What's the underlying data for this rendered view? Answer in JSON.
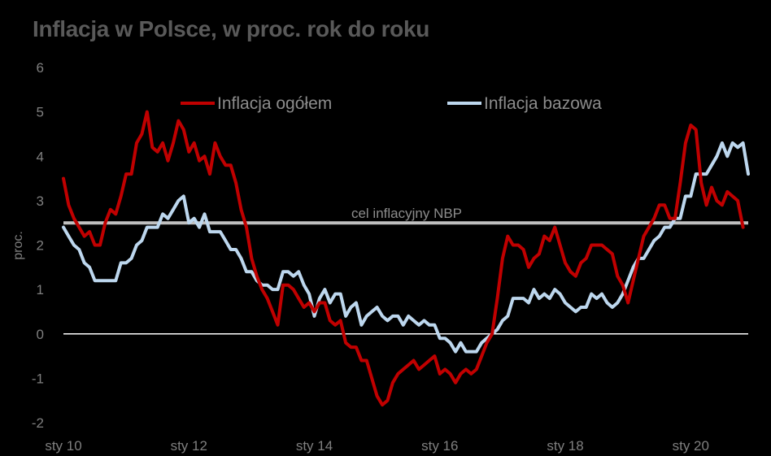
{
  "chart_data": {
    "type": "line",
    "title": "Inflacja w Polsce, w proc. rok do roku",
    "ylabel": "proc.",
    "xlabel": "",
    "ylim": [
      -2,
      6
    ],
    "yticks": [
      -2,
      -1,
      0,
      1,
      2,
      3,
      4,
      5,
      6
    ],
    "xlim": [
      "2010-01",
      "2020-12"
    ],
    "xticks": [
      {
        "label": "sty 10",
        "date": "2010-01"
      },
      {
        "label": "sty 12",
        "date": "2012-01"
      },
      {
        "label": "sty 14",
        "date": "2014-01"
      },
      {
        "label": "sty 16",
        "date": "2016-01"
      },
      {
        "label": "sty 18",
        "date": "2018-01"
      },
      {
        "label": "sty 20",
        "date": "2020-01"
      }
    ],
    "grid": false,
    "legend": "top",
    "target": {
      "label": "cel inflacyjny NBP",
      "value": 2.5,
      "color": "#bfbfbf"
    },
    "zero_line": {
      "value": 0,
      "color": "#ffffff"
    },
    "series": [
      {
        "name": "Inflacja ogółem",
        "color": "#c00000",
        "start": "2010-01",
        "values": [
          3.5,
          2.9,
          2.6,
          2.4,
          2.2,
          2.3,
          2.0,
          2.0,
          2.5,
          2.8,
          2.7,
          3.1,
          3.6,
          3.6,
          4.3,
          4.5,
          5.0,
          4.2,
          4.1,
          4.3,
          3.9,
          4.3,
          4.8,
          4.6,
          4.1,
          4.3,
          3.9,
          4.0,
          3.6,
          4.3,
          4.0,
          3.8,
          3.8,
          3.4,
          2.8,
          2.4,
          1.7,
          1.3,
          1.0,
          0.8,
          0.5,
          0.2,
          1.1,
          1.1,
          1.0,
          0.8,
          0.6,
          0.7,
          0.5,
          0.7,
          0.7,
          0.3,
          0.2,
          0.3,
          -0.2,
          -0.3,
          -0.3,
          -0.6,
          -0.6,
          -1.0,
          -1.4,
          -1.6,
          -1.5,
          -1.1,
          -0.9,
          -0.8,
          -0.7,
          -0.6,
          -0.8,
          -0.7,
          -0.6,
          -0.5,
          -0.9,
          -0.8,
          -0.9,
          -1.1,
          -0.9,
          -0.8,
          -0.9,
          -0.8,
          -0.5,
          -0.2,
          0.0,
          0.8,
          1.7,
          2.2,
          2.0,
          2.0,
          1.9,
          1.5,
          1.7,
          1.8,
          2.2,
          2.1,
          2.4,
          2.0,
          1.6,
          1.4,
          1.3,
          1.6,
          1.7,
          2.0,
          2.0,
          2.0,
          1.9,
          1.8,
          1.3,
          1.1,
          0.7,
          1.2,
          1.7,
          2.2,
          2.4,
          2.6,
          2.9,
          2.9,
          2.6,
          2.6,
          3.4,
          4.3,
          4.7,
          4.6,
          3.4,
          2.9,
          3.3,
          3.0,
          2.9,
          3.2,
          3.1,
          3.0,
          2.4
        ]
      },
      {
        "name": "Inflacja bazowa",
        "color": "#bdd7ee",
        "start": "2010-01",
        "values": [
          2.4,
          2.2,
          2.0,
          1.9,
          1.6,
          1.5,
          1.2,
          1.2,
          1.2,
          1.2,
          1.2,
          1.6,
          1.6,
          1.7,
          2.0,
          2.1,
          2.4,
          2.4,
          2.4,
          2.7,
          2.6,
          2.8,
          3.0,
          3.1,
          2.5,
          2.6,
          2.4,
          2.7,
          2.3,
          2.3,
          2.3,
          2.1,
          1.9,
          1.9,
          1.7,
          1.4,
          1.4,
          1.2,
          1.1,
          1.1,
          1.0,
          1.0,
          1.4,
          1.4,
          1.3,
          1.4,
          1.1,
          0.9,
          0.4,
          0.8,
          1.0,
          0.7,
          0.9,
          0.9,
          0.4,
          0.6,
          0.7,
          0.2,
          0.4,
          0.5,
          0.6,
          0.4,
          0.3,
          0.4,
          0.4,
          0.2,
          0.4,
          0.3,
          0.2,
          0.3,
          0.2,
          0.2,
          -0.1,
          -0.1,
          -0.2,
          -0.4,
          -0.2,
          -0.4,
          -0.4,
          -0.4,
          -0.2,
          -0.1,
          0.0,
          0.1,
          0.3,
          0.4,
          0.8,
          0.8,
          0.8,
          0.7,
          1.0,
          0.8,
          0.9,
          0.8,
          1.0,
          0.9,
          0.7,
          0.6,
          0.5,
          0.6,
          0.6,
          0.9,
          0.8,
          0.9,
          0.7,
          0.6,
          0.7,
          0.9,
          1.2,
          1.5,
          1.7,
          1.7,
          1.9,
          2.1,
          2.2,
          2.4,
          2.4,
          2.6,
          2.6,
          3.1,
          3.1,
          3.6,
          3.6,
          3.6,
          3.8,
          4.0,
          4.3,
          4.0,
          4.3,
          4.2,
          4.3,
          3.6
        ]
      }
    ]
  }
}
